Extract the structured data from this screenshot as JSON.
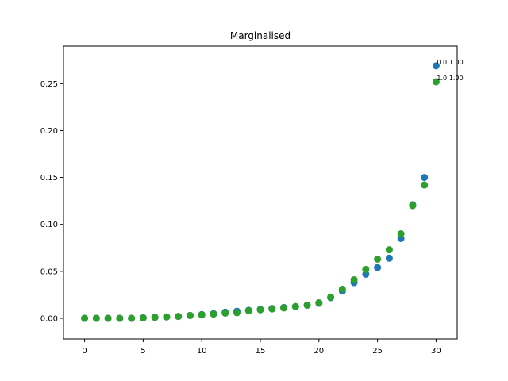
{
  "chart_data": {
    "type": "scatter",
    "title": "Marginalised",
    "xlabel": "",
    "ylabel": "",
    "xlim": [
      -1.8,
      31.8
    ],
    "ylim": [
      -0.022,
      0.29
    ],
    "xticks": [
      0,
      5,
      10,
      15,
      20,
      25,
      30
    ],
    "yticks": [
      0.0,
      0.05,
      0.1,
      0.15,
      0.2,
      0.25
    ],
    "ytick_labels": [
      "0.00",
      "0.05",
      "0.10",
      "0.15",
      "0.20",
      "0.25"
    ],
    "grid": false,
    "legend": false,
    "x": [
      0,
      1,
      2,
      3,
      4,
      5,
      6,
      7,
      8,
      9,
      10,
      11,
      12,
      13,
      14,
      15,
      16,
      17,
      18,
      19,
      20,
      21,
      22,
      23,
      24,
      25,
      26,
      27,
      28,
      29,
      30
    ],
    "series": [
      {
        "color": "#1f77b4",
        "values": [
          0.0,
          0.0,
          0.0,
          0.0,
          0.0,
          0.0005,
          0.001,
          0.0015,
          0.002,
          0.003,
          0.004,
          0.005,
          0.0065,
          0.0075,
          0.0085,
          0.0095,
          0.0105,
          0.0115,
          0.0125,
          0.014,
          0.016,
          0.022,
          0.029,
          0.038,
          0.047,
          0.054,
          0.064,
          0.085,
          0.121,
          0.15,
          0.269
        ]
      },
      {
        "color": "#2ca02c",
        "values": [
          0.0,
          0.0,
          0.0,
          0.0,
          0.0,
          0.0005,
          0.001,
          0.0015,
          0.002,
          0.003,
          0.0035,
          0.0045,
          0.0055,
          0.006,
          0.008,
          0.009,
          0.01,
          0.011,
          0.0125,
          0.014,
          0.0165,
          0.0225,
          0.031,
          0.041,
          0.052,
          0.063,
          0.073,
          0.09,
          0.12,
          0.142,
          0.252
        ]
      }
    ],
    "annotations": [
      {
        "text": "0.0:1.00",
        "x": 30,
        "y": 0.269
      },
      {
        "text": "1.0:1.00",
        "x": 30,
        "y": 0.252
      }
    ]
  }
}
